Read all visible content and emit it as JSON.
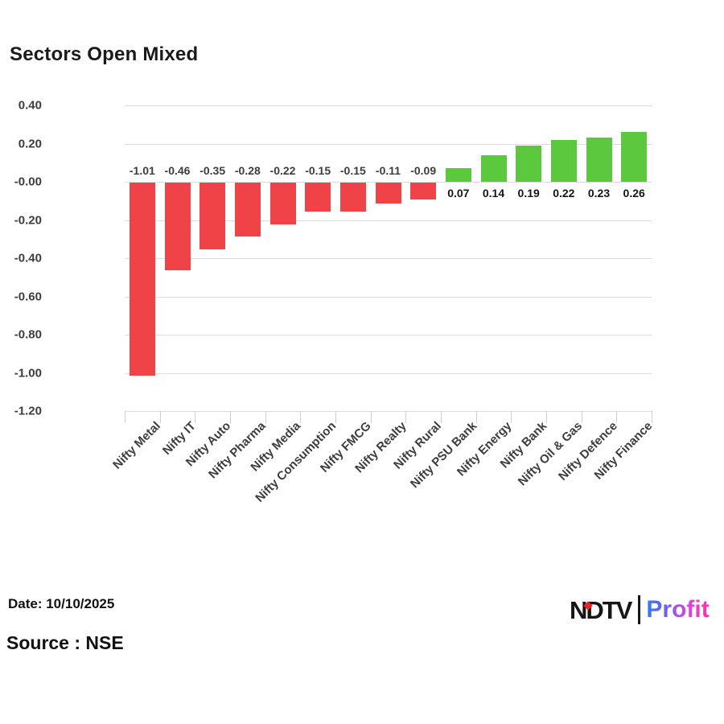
{
  "title": "Sectors Open Mixed",
  "footer": {
    "date_label": "Date: 10/10/2025",
    "source_label": "Source : NSE"
  },
  "logo": {
    "ndtv_text": "NDTV",
    "profit_text": "Profit",
    "diamond_icon_color": "#e8232a"
  },
  "colors": {
    "positive_bar": "#5bc83d",
    "negative_bar": "#f04348",
    "gridline": "#dcdcdc",
    "axis_text": "#3d3d3d",
    "positive_label_text": "#141414",
    "title_text": "#1a1a1a"
  },
  "chart_data": {
    "type": "bar",
    "title": "Sectors Open Mixed",
    "categories": [
      "Nifty Metal",
      "Nifty IT",
      "Nifty Auto",
      "Nifty Pharma",
      "Nifty Media",
      "Nifty Consumption",
      "Nifty FMCG",
      "Nifty Realty",
      "Nifty Rural",
      "Nifty PSU Bank",
      "Nifty Energy",
      "Nifty Bank",
      "Nifty Oil & Gas",
      "Nifty Defence",
      "Nifty Finance"
    ],
    "values": [
      -1.01,
      -0.46,
      -0.35,
      -0.28,
      -0.22,
      -0.15,
      -0.15,
      -0.11,
      -0.09,
      0.07,
      0.14,
      0.19,
      0.22,
      0.23,
      0.26
    ],
    "value_labels": [
      "-1.01",
      "-0.46",
      "-0.35",
      "-0.28",
      "-0.22",
      "-0.15",
      "-0.15",
      "-0.11",
      "-0.09",
      "0.07",
      "0.14",
      "0.19",
      "0.22",
      "0.23",
      "0.26"
    ],
    "y_tick_labels": [
      "0.40",
      "0.20",
      "-0.00",
      "-0.20",
      "-0.40",
      "-0.60",
      "-0.80",
      "-1.00",
      "-1.20"
    ],
    "y_tick_values": [
      0.4,
      0.2,
      0.0,
      -0.2,
      -0.4,
      -0.6,
      -0.8,
      -1.0,
      -1.2
    ],
    "ylim": [
      -1.2,
      0.4
    ],
    "xlabel": "",
    "ylabel": "",
    "grid": true,
    "legend": "none",
    "bar_color_rule": "green if positive, red if negative"
  }
}
